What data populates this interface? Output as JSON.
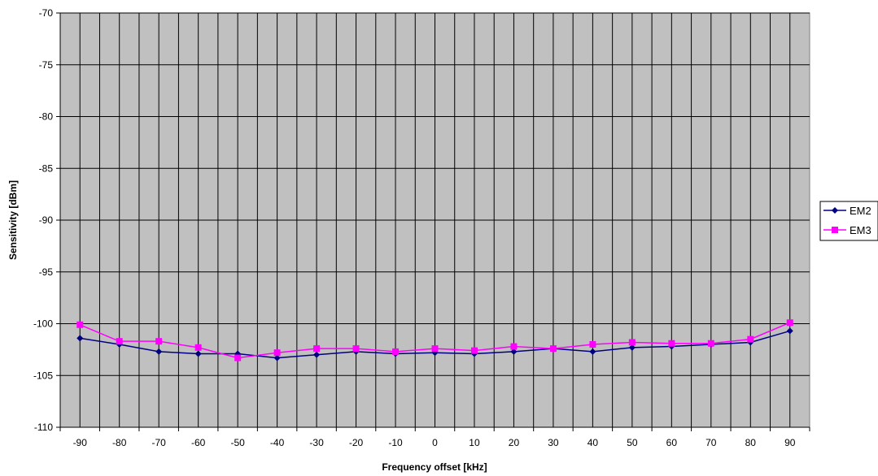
{
  "chart_data": {
    "type": "line",
    "xlabel": "Frequency offset [kHz]",
    "ylabel": "Sensitivity [dBm]",
    "x": [
      -90,
      -80,
      -70,
      -60,
      -50,
      -40,
      -30,
      -20,
      -10,
      0,
      10,
      20,
      30,
      40,
      50,
      60,
      70,
      80,
      90
    ],
    "xtick_labels": [
      "-90",
      "-80",
      "-70",
      "-60",
      "-50",
      "-40",
      "-30",
      "-20",
      "-10",
      "0",
      "10",
      "20",
      "30",
      "40",
      "50",
      "60",
      "70",
      "80",
      "90"
    ],
    "ylim": [
      -110,
      -70
    ],
    "ytick_labels": [
      "-70",
      "-75",
      "-80",
      "-85",
      "-90",
      "-95",
      "-100",
      "-105",
      "-110"
    ],
    "yticks": [
      -70,
      -75,
      -80,
      -85,
      -90,
      -95,
      -100,
      -105,
      -110
    ],
    "grid": true,
    "plot_background": "#c0c0c0",
    "legend_position": "right",
    "series": [
      {
        "name": "EM2",
        "color": "#000080",
        "marker": "diamond",
        "values": [
          -101.4,
          -102.0,
          -102.7,
          -102.9,
          -102.9,
          -103.3,
          -103.0,
          -102.7,
          -102.9,
          -102.8,
          -102.9,
          -102.7,
          -102.4,
          -102.7,
          -102.3,
          -102.2,
          -102.0,
          -101.8,
          -100.7
        ]
      },
      {
        "name": "EM3",
        "color": "#ff00ff",
        "marker": "square",
        "values": [
          -100.1,
          -101.7,
          -101.7,
          -102.3,
          -103.3,
          -102.8,
          -102.4,
          -102.4,
          -102.7,
          -102.4,
          -102.6,
          -102.2,
          -102.4,
          -102.0,
          -101.8,
          -101.9,
          -101.9,
          -101.5,
          -99.9
        ]
      }
    ]
  }
}
